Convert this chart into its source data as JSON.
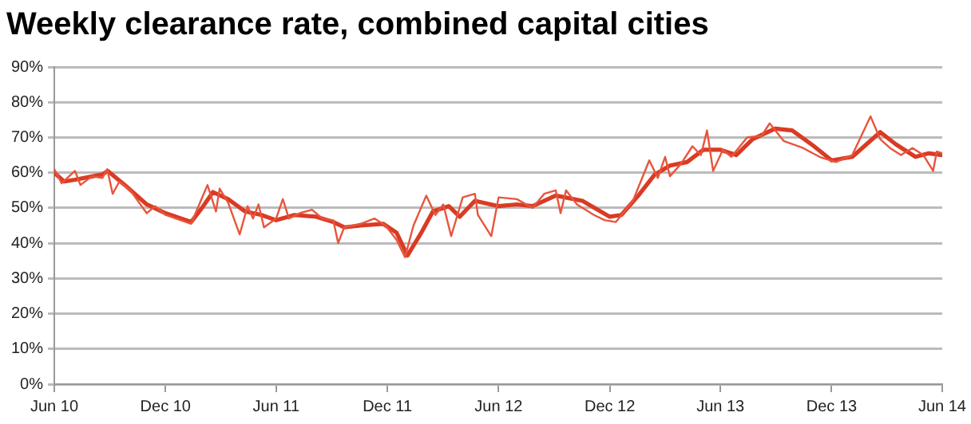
{
  "chart_data": {
    "type": "line",
    "title": "Weekly clearance rate, combined capital cities",
    "xlim": [
      "2010-06-01",
      "2014-06-01"
    ],
    "xticks": [
      {
        "value": "2010-06-01",
        "label": "Jun 10"
      },
      {
        "value": "2010-12-01",
        "label": "Dec 10"
      },
      {
        "value": "2011-06-01",
        "label": "Jun 11"
      },
      {
        "value": "2011-12-01",
        "label": "Dec 11"
      },
      {
        "value": "2012-06-01",
        "label": "Jun 12"
      },
      {
        "value": "2012-12-01",
        "label": "Dec 12"
      },
      {
        "value": "2013-06-01",
        "label": "Jun 13"
      },
      {
        "value": "2013-12-01",
        "label": "Dec 13"
      },
      {
        "value": "2014-06-01",
        "label": "Jun 14"
      }
    ],
    "ylim": [
      0,
      90
    ],
    "yticks": [
      {
        "value": 0,
        "label": "0%"
      },
      {
        "value": 10,
        "label": "10%"
      },
      {
        "value": 20,
        "label": "20%"
      },
      {
        "value": 30,
        "label": "30%"
      },
      {
        "value": 40,
        "label": "40%"
      },
      {
        "value": 50,
        "label": "50%"
      },
      {
        "value": 60,
        "label": "60%"
      },
      {
        "value": 70,
        "label": "70%"
      },
      {
        "value": 80,
        "label": "80%"
      },
      {
        "value": 90,
        "label": "90%"
      }
    ],
    "grid": "y",
    "legend": false,
    "marker": "none",
    "line_style": "solid",
    "series": [
      {
        "color": "#e8553c",
        "x": [
          "2010-06-01",
          "2010-06-13",
          "2010-07-05",
          "2010-07-14",
          "2010-08-02",
          "2010-08-19",
          "2010-08-27",
          "2010-09-05",
          "2010-09-16",
          "2010-10-04",
          "2010-10-31",
          "2010-11-14",
          "2010-12-01",
          "2011-01-12",
          "2011-02-08",
          "2011-02-22",
          "2011-02-28",
          "2011-03-14",
          "2011-04-02",
          "2011-04-15",
          "2011-04-24",
          "2011-05-03",
          "2011-05-12",
          "2011-06-01",
          "2011-06-12",
          "2011-06-22",
          "2011-07-10",
          "2011-07-30",
          "2011-08-16",
          "2011-09-03",
          "2011-09-11",
          "2011-09-21",
          "2011-10-18",
          "2011-11-10",
          "2011-11-28",
          "2011-12-16",
          "2011-12-30",
          "2012-01-13",
          "2012-02-03",
          "2012-02-18",
          "2012-03-02",
          "2012-03-15",
          "2012-04-03",
          "2012-04-23",
          "2012-04-28",
          "2012-05-20",
          "2012-06-01",
          "2012-07-01",
          "2012-07-27",
          "2012-08-15",
          "2012-09-03",
          "2012-09-11",
          "2012-09-20",
          "2012-10-08",
          "2012-11-05",
          "2012-11-23",
          "2012-12-11",
          "2013-01-08",
          "2013-02-04",
          "2013-02-18",
          "2013-03-02",
          "2013-03-10",
          "2013-03-28",
          "2013-04-16",
          "2013-04-30",
          "2013-05-10",
          "2013-05-20",
          "2013-06-05",
          "2013-06-19",
          "2013-07-15",
          "2013-08-08",
          "2013-08-21",
          "2013-09-13",
          "2013-10-15",
          "2013-11-11",
          "2013-12-08",
          "2014-01-04",
          "2014-02-03",
          "2014-02-19",
          "2014-03-07",
          "2014-03-25",
          "2014-04-13",
          "2014-05-01",
          "2014-05-17",
          "2014-05-23",
          "2014-06-01"
        ],
        "values": [
          61,
          57,
          60.5,
          56.5,
          59,
          58.5,
          61,
          54,
          57.5,
          55,
          48.5,
          50.5,
          48,
          45.5,
          56.5,
          49,
          55.5,
          51.5,
          42.5,
          50.5,
          47,
          51,
          44.5,
          47,
          52.5,
          47,
          48.5,
          49.5,
          47,
          46.5,
          40,
          44.5,
          45.5,
          47,
          45,
          41,
          36,
          45,
          53.5,
          48,
          51,
          42,
          53,
          54,
          48,
          42,
          53,
          52.5,
          50,
          54,
          55,
          48.5,
          55,
          51,
          48,
          46.5,
          46,
          52,
          63.5,
          58.5,
          64.5,
          59,
          62.5,
          67.5,
          65,
          72,
          60.5,
          66.5,
          64.5,
          70,
          70.5,
          74,
          69,
          67,
          64.5,
          63,
          65,
          76,
          69.5,
          67,
          65,
          67,
          65,
          60.5,
          66,
          65.5
        ]
      },
      {
        "color": "#d93b24",
        "x": [
          "2010-06-01",
          "2010-06-17",
          "2010-07-05",
          "2010-08-19",
          "2010-08-28",
          "2010-09-25",
          "2010-10-31",
          "2010-12-01",
          "2011-01-12",
          "2011-01-30",
          "2011-02-17",
          "2011-03-14",
          "2011-04-11",
          "2011-05-08",
          "2011-06-01",
          "2011-07-01",
          "2011-08-06",
          "2011-09-03",
          "2011-09-21",
          "2011-10-18",
          "2011-11-24",
          "2011-12-16",
          "2012-01-03",
          "2012-01-26",
          "2012-02-14",
          "2012-03-11",
          "2012-03-29",
          "2012-04-23",
          "2012-06-01",
          "2012-07-01",
          "2012-07-27",
          "2012-09-03",
          "2012-10-17",
          "2012-12-01",
          "2012-12-20",
          "2013-01-17",
          "2013-02-13",
          "2013-03-10",
          "2013-04-07",
          "2013-05-04",
          "2013-06-01",
          "2013-06-27",
          "2013-07-24",
          "2013-08-30",
          "2013-09-27",
          "2013-11-02",
          "2013-12-01",
          "2014-01-04",
          "2014-02-19",
          "2014-03-17",
          "2014-04-18",
          "2014-05-10",
          "2014-06-01"
        ],
        "values": [
          60,
          57.5,
          58,
          59.5,
          60.5,
          56.5,
          51,
          48.5,
          46,
          50,
          54.5,
          52.5,
          49,
          48,
          46.5,
          48,
          47.5,
          46,
          44.5,
          45,
          45.5,
          43,
          36.5,
          43,
          49,
          50.5,
          47.5,
          52,
          50.5,
          51,
          50.5,
          53.5,
          52,
          47.5,
          48,
          53.5,
          59.5,
          62,
          63,
          66.5,
          66.5,
          65,
          69.5,
          72.5,
          72,
          67.5,
          63.5,
          64.5,
          71.5,
          68,
          64.5,
          65.5,
          65
        ]
      }
    ]
  }
}
